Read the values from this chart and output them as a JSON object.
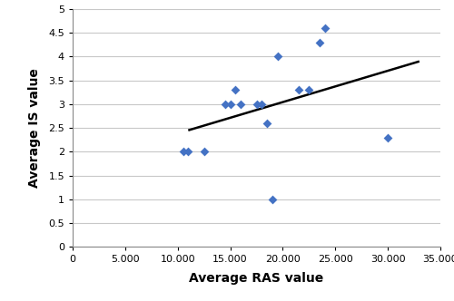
{
  "x_data": [
    10500,
    11000,
    12500,
    14500,
    15000,
    15500,
    16000,
    17500,
    18000,
    18500,
    19000,
    19500,
    21500,
    22500,
    23500,
    24000,
    30000
  ],
  "y_data": [
    2.0,
    2.0,
    2.0,
    3.0,
    3.0,
    3.3,
    3.0,
    3.0,
    3.0,
    2.6,
    1.0,
    4.0,
    3.3,
    3.3,
    4.3,
    4.6,
    2.3
  ],
  "trend_x": [
    11000,
    33000
  ],
  "trend_y": [
    2.45,
    3.9
  ],
  "marker_color": "#4472C4",
  "marker_size": 25,
  "line_color": "#000000",
  "line_width": 1.8,
  "xlabel": "Average RAS value",
  "ylabel": "Average IS value",
  "xlim": [
    0,
    35000
  ],
  "ylim": [
    0,
    5
  ],
  "xticks": [
    0,
    5000,
    10000,
    15000,
    20000,
    25000,
    30000,
    35000
  ],
  "yticks": [
    0,
    0.5,
    1.0,
    1.5,
    2.0,
    2.5,
    3.0,
    3.5,
    4.0,
    4.5,
    5.0
  ],
  "xlabel_fontsize": 10,
  "ylabel_fontsize": 10,
  "tick_fontsize": 8,
  "grid_color": "#c8c8c8",
  "background_color": "#ffffff",
  "spine_color": "#888888"
}
